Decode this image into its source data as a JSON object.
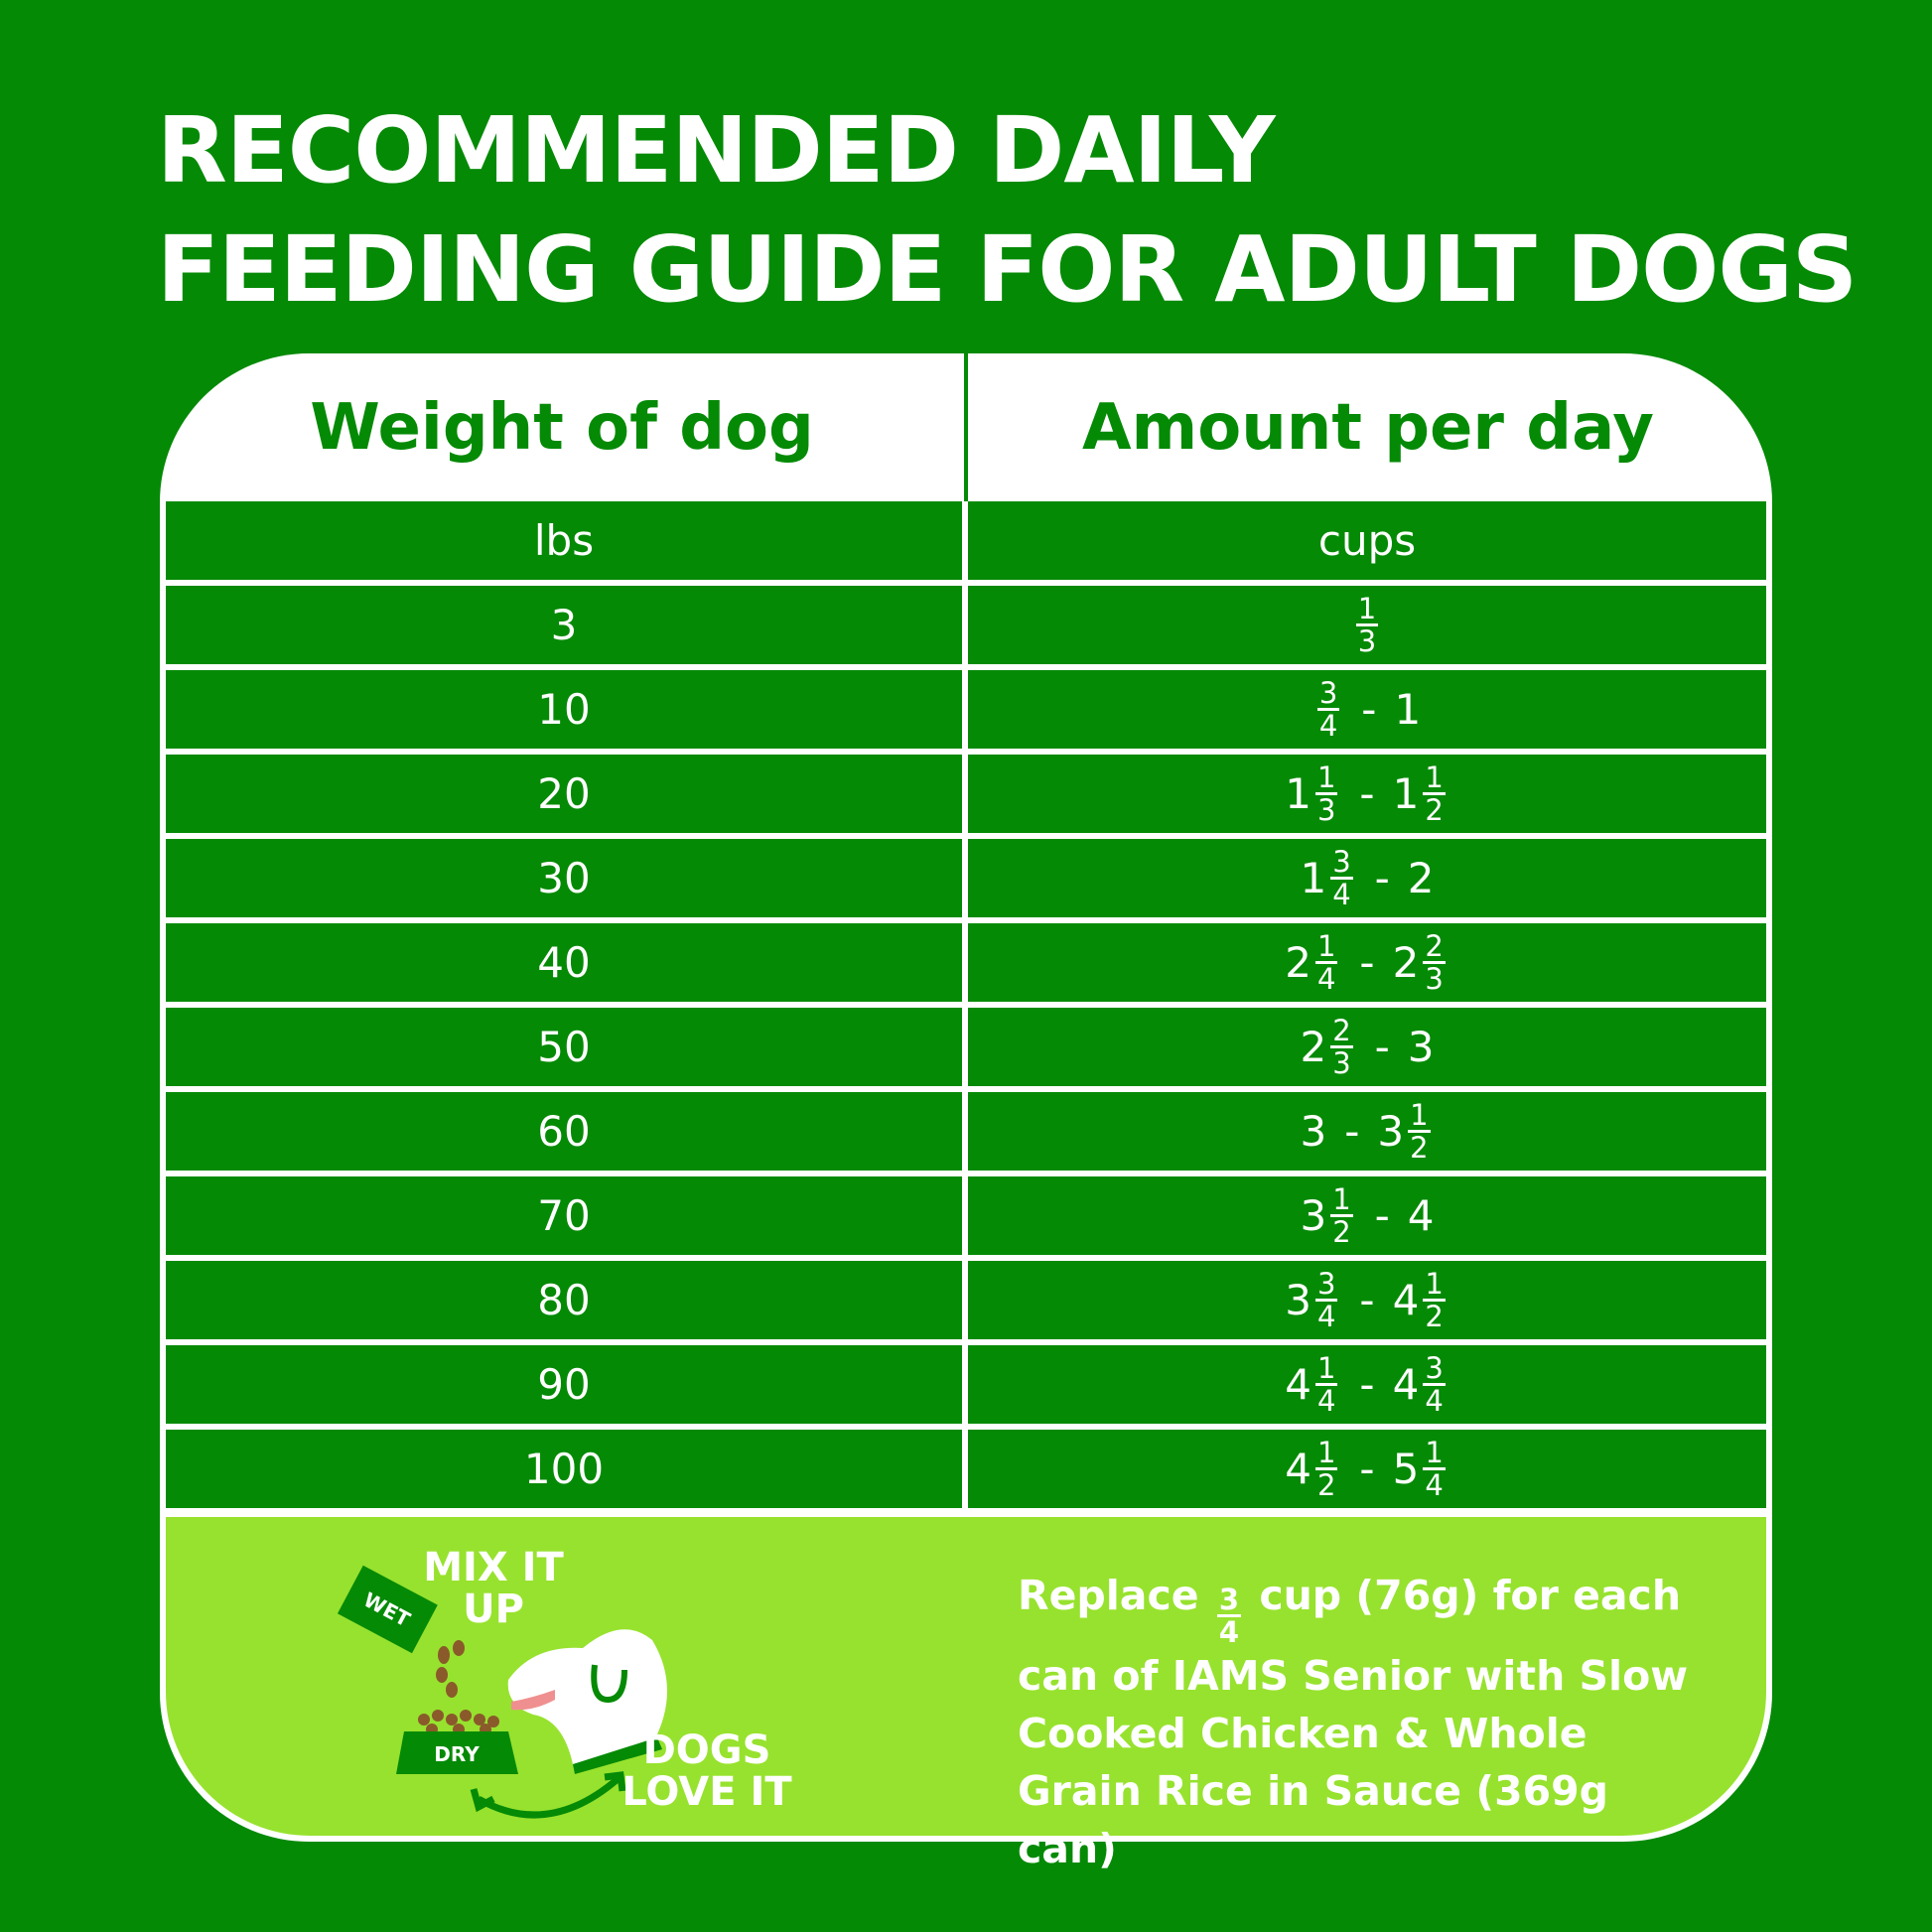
{
  "title": {
    "line1": "RECOMMENDED DAILY",
    "line2": "FEEDING GUIDE FOR ADULT DOGS"
  },
  "colors": {
    "dark_green": "#058a06",
    "lime_green": "#97e22e",
    "white": "#ffffff"
  },
  "table": {
    "headers": [
      "Weight of dog",
      "Amount per day"
    ],
    "units": [
      "lbs",
      "cups"
    ],
    "rows": [
      {
        "weight": "3",
        "amount": [
          {
            "n": "1",
            "d": "3"
          }
        ]
      },
      {
        "weight": "10",
        "amount": [
          {
            "n": "3",
            "d": "4"
          },
          "-",
          {
            "w": "1"
          }
        ]
      },
      {
        "weight": "20",
        "amount": [
          {
            "w": "1",
            "n": "1",
            "d": "3"
          },
          "-",
          {
            "w": "1",
            "n": "1",
            "d": "2"
          }
        ]
      },
      {
        "weight": "30",
        "amount": [
          {
            "w": "1",
            "n": "3",
            "d": "4"
          },
          "-",
          {
            "w": "2"
          }
        ]
      },
      {
        "weight": "40",
        "amount": [
          {
            "w": "2",
            "n": "1",
            "d": "4"
          },
          "-",
          {
            "w": "2",
            "n": "2",
            "d": "3"
          }
        ]
      },
      {
        "weight": "50",
        "amount": [
          {
            "w": "2",
            "n": "2",
            "d": "3"
          },
          "-",
          {
            "w": "3"
          }
        ]
      },
      {
        "weight": "60",
        "amount": [
          {
            "w": "3"
          },
          "-",
          {
            "w": "3",
            "n": "1",
            "d": "2"
          }
        ]
      },
      {
        "weight": "70",
        "amount": [
          {
            "w": "3",
            "n": "1",
            "d": "2"
          },
          "-",
          {
            "w": "4"
          }
        ]
      },
      {
        "weight": "80",
        "amount": [
          {
            "w": "3",
            "n": "3",
            "d": "4"
          },
          "-",
          {
            "w": "4",
            "n": "1",
            "d": "2"
          }
        ]
      },
      {
        "weight": "90",
        "amount": [
          {
            "w": "4",
            "n": "1",
            "d": "4"
          },
          "-",
          {
            "w": "4",
            "n": "3",
            "d": "4"
          }
        ]
      },
      {
        "weight": "100",
        "amount": [
          {
            "w": "4",
            "n": "1",
            "d": "2"
          },
          "-",
          {
            "w": "5",
            "n": "1",
            "d": "4"
          }
        ]
      }
    ]
  },
  "illustration": {
    "mix_label": "MIX IT UP",
    "wet_label": "WET",
    "dry_label": "DRY",
    "dogs_label": "DOGS LOVE IT"
  },
  "note": {
    "before": "Replace",
    "frac_n": "3",
    "frac_d": "4",
    "after": "cup (76g) for each can of IAMS Senior with Slow Cooked Chicken & Whole Grain Rice in Sauce (369g can)"
  }
}
